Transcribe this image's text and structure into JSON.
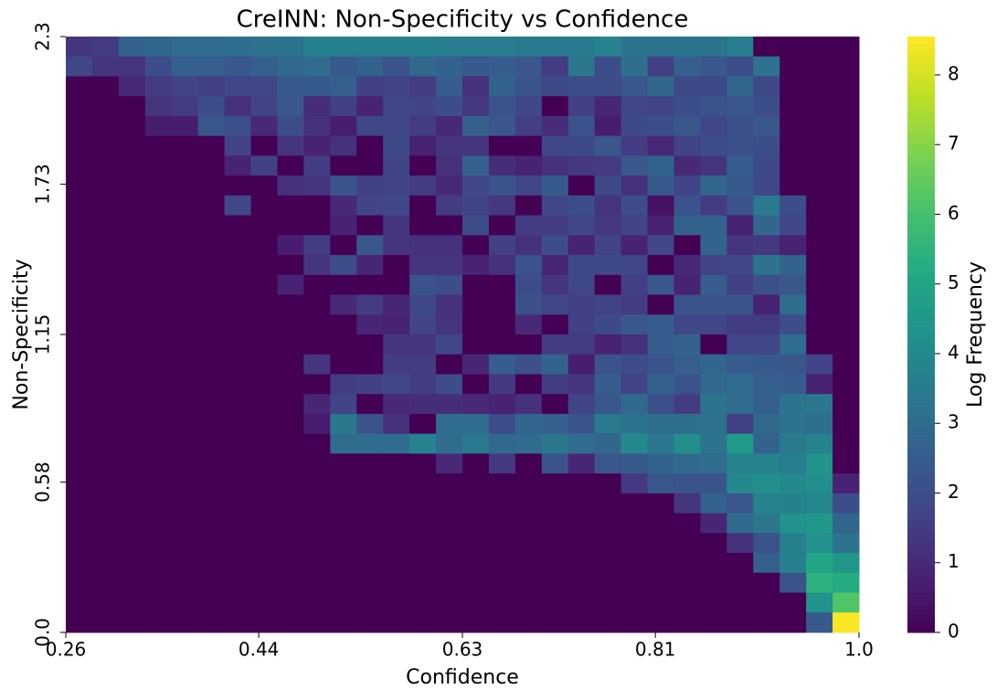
{
  "chart_data": {
    "type": "heatmap",
    "title": "CreINN: Non-Specificity vs Confidence",
    "x_label": "Confidence",
    "y_label": "Non-Specificity",
    "colorbar_label": "Log Frequency",
    "colormap": "viridis",
    "xlim": [
      0.26,
      1.0
    ],
    "ylim": [
      0,
      2.3
    ],
    "xticks": [
      0.26,
      0.44,
      0.63,
      0.81,
      {
        "value": 1.0,
        "label": "1.0"
      }
    ],
    "yticks": [
      {
        "value": 0,
        "label": "0.0"
      },
      0.58,
      1.15,
      1.73,
      2.3
    ],
    "clim": [
      0,
      8.55
    ],
    "colorbar_ticks": [
      0,
      1,
      2,
      3,
      4,
      5,
      6,
      7,
      8
    ],
    "z": [
      [
        1.3,
        1.5,
        2.7,
        2.8,
        3.0,
        3.0,
        3.1,
        3.2,
        3.3,
        3.7,
        3.7,
        3.7,
        3.7,
        3.7,
        3.6,
        3.6,
        3.6,
        3.5,
        3.5,
        3.5,
        3.8,
        3.3,
        3.3,
        3.3,
        3.3,
        3.6,
        0,
        0,
        0,
        0
      ],
      [
        1.8,
        1.3,
        1.3,
        2,
        2.6,
        2.6,
        2.3,
        2.6,
        2.9,
        3,
        2.4,
        2.7,
        2.2,
        2.9,
        2.7,
        2.4,
        2.5,
        2.3,
        1.5,
        3.4,
        2,
        3.1,
        1.6,
        2.6,
        2.3,
        2,
        3.2,
        0,
        0,
        0
      ],
      [
        0,
        0,
        1,
        1.5,
        1.7,
        1.6,
        1.8,
        1.8,
        2.4,
        2.4,
        2.6,
        1.6,
        1.7,
        1.5,
        2.5,
        1.2,
        2.7,
        2.2,
        1.9,
        2,
        2,
        2.3,
        2.8,
        1.9,
        1.9,
        2.8,
        1.9,
        0,
        0,
        0
      ],
      [
        0,
        0,
        0,
        1.3,
        1.5,
        2,
        1.2,
        1.7,
        2.3,
        1.1,
        1.6,
        0.8,
        1.8,
        1.7,
        2,
        1.4,
        2.2,
        1.8,
        0,
        1.6,
        0.9,
        1.8,
        1.7,
        2,
        2.2,
        2.3,
        2,
        0,
        0,
        0
      ],
      [
        0,
        0,
        0,
        0.7,
        0.7,
        2.3,
        2.1,
        1,
        2,
        1.2,
        0.7,
        1.8,
        1.8,
        1.5,
        1,
        2.6,
        2.3,
        1.6,
        1.1,
        2.2,
        0.7,
        1.9,
        2,
        2.3,
        1.8,
        2.1,
        2.3,
        0,
        0,
        0
      ],
      [
        0,
        0,
        0,
        0,
        0,
        0,
        1.7,
        0,
        1.3,
        0.8,
        1.2,
        0,
        1.9,
        0.8,
        1.3,
        1.3,
        0,
        0,
        1.8,
        1.9,
        2.3,
        1.5,
        1,
        1.7,
        2,
        2.1,
        2,
        0,
        0,
        0
      ],
      [
        0,
        0,
        0,
        0,
        0,
        0,
        0.8,
        1.6,
        0,
        1.5,
        0,
        0,
        1.7,
        0,
        1.2,
        2.6,
        1.1,
        0.8,
        1.2,
        1.4,
        1.5,
        2.3,
        2.7,
        1,
        1.3,
        2.5,
        1.9,
        0,
        0,
        0
      ],
      [
        0,
        0,
        0,
        0,
        0,
        0,
        0,
        0,
        1.2,
        1.3,
        2.2,
        1.6,
        1.7,
        1.5,
        1,
        1.8,
        2.2,
        1.8,
        2.4,
        0,
        1.9,
        1.2,
        2.4,
        1.7,
        2.8,
        2.4,
        1.8,
        0,
        0,
        0
      ],
      [
        0,
        0,
        0,
        0,
        0,
        0,
        1.8,
        0,
        0,
        0,
        1,
        1.7,
        1.8,
        0,
        1.5,
        1.7,
        1.4,
        0,
        1.8,
        2,
        1.3,
        2,
        0.4,
        2.2,
        1.5,
        2.2,
        3.5,
        2,
        0,
        0
      ],
      [
        0,
        0,
        0,
        0,
        0,
        0,
        0,
        0,
        0,
        0,
        0.8,
        0,
        1.3,
        0,
        0,
        2,
        0,
        1.5,
        1.5,
        1.8,
        1.4,
        1.7,
        0.8,
        2.7,
        2.7,
        0.8,
        2.8,
        1.8,
        0,
        0
      ],
      [
        0,
        0,
        0,
        0,
        0,
        0,
        0,
        0,
        0.7,
        1.5,
        0,
        2.3,
        1.3,
        1.2,
        1.2,
        0,
        1.6,
        1.2,
        2,
        0.8,
        1.7,
        0.8,
        1.8,
        0,
        2.7,
        1.3,
        1.4,
        0.8,
        0,
        0
      ],
      [
        0,
        0,
        0,
        0,
        0,
        0,
        0,
        0,
        0,
        1.3,
        2,
        0.9,
        0,
        1.3,
        1.3,
        0.8,
        1.2,
        2.2,
        0.9,
        1.9,
        1.9,
        1.8,
        0,
        1,
        1.7,
        1.8,
        3.3,
        2.7,
        0,
        0
      ],
      [
        0,
        0,
        0,
        0,
        0,
        0,
        0,
        0,
        0.8,
        0,
        0,
        0,
        0,
        2.2,
        2,
        0,
        0,
        2,
        1.3,
        1.8,
        0,
        1.6,
        2.3,
        0.8,
        2.5,
        1.6,
        2.1,
        2.3,
        0,
        0
      ],
      [
        0,
        0,
        0,
        0,
        0,
        0,
        0,
        0,
        0,
        0,
        1,
        1.5,
        0.9,
        1.8,
        1.2,
        0,
        0,
        2.1,
        1.8,
        1.6,
        1.7,
        1.5,
        0,
        2.2,
        2.2,
        2.2,
        0.8,
        3,
        0,
        0
      ],
      [
        0,
        0,
        0,
        0,
        0,
        0,
        0,
        0,
        0,
        0,
        0,
        0.9,
        0.8,
        1.7,
        1.3,
        0,
        0,
        1,
        0,
        1.6,
        1.9,
        2.3,
        2.5,
        1.8,
        1.8,
        1.5,
        1.5,
        2,
        0,
        0
      ],
      [
        0,
        0,
        0,
        0,
        0,
        0,
        0,
        0,
        0,
        0,
        0,
        0,
        1.3,
        1.3,
        1.8,
        0,
        0,
        0,
        1.5,
        1.5,
        0.8,
        1.2,
        2.5,
        2.7,
        0,
        1.8,
        1.8,
        3,
        0,
        0
      ],
      [
        0,
        0,
        0,
        0,
        0,
        0,
        0,
        0,
        0,
        1.3,
        0,
        0,
        1.5,
        1.5,
        0,
        0.9,
        2.5,
        2.1,
        2.7,
        0.7,
        2.2,
        2,
        2.2,
        2.6,
        2.8,
        2.5,
        2.4,
        2.3,
        1.7,
        0
      ],
      [
        0,
        0,
        0,
        0,
        0,
        0,
        0,
        0,
        0,
        0,
        1.5,
        1.6,
        1.8,
        1.5,
        2,
        0,
        1.4,
        0,
        1.5,
        1.3,
        2.5,
        1.7,
        2.7,
        2.2,
        2.9,
        3,
        2.6,
        2.5,
        0.8,
        0
      ],
      [
        0,
        0,
        0,
        0,
        0,
        0,
        0,
        0,
        0,
        0.9,
        1.7,
        0,
        1,
        1.1,
        1.1,
        1,
        0.8,
        1.2,
        0,
        1.7,
        2.3,
        2.9,
        2.1,
        1.5,
        3.3,
        3,
        2.6,
        3.3,
        3.4,
        0
      ],
      [
        0,
        0,
        0,
        0,
        0,
        0,
        0,
        0,
        0,
        0.7,
        3.4,
        2.2,
        1.2,
        0,
        3,
        3,
        2,
        2.8,
        2.6,
        2.2,
        3.5,
        3.3,
        3.1,
        3.1,
        3.2,
        1.6,
        2.9,
        3.3,
        3.1,
        0
      ],
      [
        0,
        0,
        0,
        0,
        0,
        0,
        0,
        0,
        0,
        0,
        3,
        3,
        3,
        3.8,
        3,
        3.5,
        2.9,
        3,
        3.4,
        3,
        2.8,
        4,
        3.4,
        4.2,
        3.3,
        4.6,
        2.7,
        3.5,
        3.8,
        0
      ],
      [
        0,
        0,
        0,
        0,
        0,
        0,
        0,
        0,
        0,
        0,
        0,
        0,
        0,
        0,
        1,
        0,
        1.4,
        0,
        2.2,
        0.9,
        2.3,
        2.4,
        2.7,
        2.9,
        3,
        3.8,
        3.8,
        3.6,
        4.4,
        0
      ],
      [
        0,
        0,
        0,
        0,
        0,
        0,
        0,
        0,
        0,
        0,
        0,
        0,
        0,
        0,
        0,
        0,
        0,
        0,
        0,
        0,
        0,
        1.4,
        2.3,
        2.2,
        2.2,
        4,
        4.2,
        4,
        4.2,
        0.8
      ],
      [
        0,
        0,
        0,
        0,
        0,
        0,
        0,
        0,
        0,
        0,
        0,
        0,
        0,
        0,
        0,
        0,
        0,
        0,
        0,
        0,
        0,
        0,
        0,
        1.3,
        2.7,
        2.3,
        3.8,
        3.7,
        3.9,
        2
      ],
      [
        0,
        0,
        0,
        0,
        0,
        0,
        0,
        0,
        0,
        0,
        0,
        0,
        0,
        0,
        0,
        0,
        0,
        0,
        0,
        0,
        0,
        0,
        0,
        0,
        0.9,
        2.9,
        3.4,
        4.3,
        4.5,
        2.8
      ],
      [
        0,
        0,
        0,
        0,
        0,
        0,
        0,
        0,
        0,
        0,
        0,
        0,
        0,
        0,
        0,
        0,
        0,
        0,
        0,
        0,
        0,
        0,
        0,
        0,
        0,
        1.2,
        2.2,
        3.7,
        4.3,
        3.2
      ],
      [
        0,
        0,
        0,
        0,
        0,
        0,
        0,
        0,
        0,
        0,
        0,
        0,
        0,
        0,
        0,
        0,
        0,
        0,
        0,
        0,
        0,
        0,
        0,
        0,
        0,
        0,
        2.6,
        3.7,
        5,
        4.5
      ],
      [
        0,
        0,
        0,
        0,
        0,
        0,
        0,
        0,
        0,
        0,
        0,
        0,
        0,
        0,
        0,
        0,
        0,
        0,
        0,
        0,
        0,
        0,
        0,
        0,
        0,
        0,
        0,
        2.2,
        5.4,
        5.2
      ],
      [
        0,
        0,
        0,
        0,
        0,
        0,
        0,
        0,
        0,
        0,
        0,
        0,
        0,
        0,
        0,
        0,
        0,
        0,
        0,
        0,
        0,
        0,
        0,
        0,
        0,
        0,
        0,
        0,
        4.3,
        6.2
      ],
      [
        0,
        0,
        0,
        0,
        0,
        0,
        0,
        0,
        0,
        0,
        0,
        0,
        0,
        0,
        0,
        0,
        0,
        0,
        0,
        0,
        0,
        0,
        0,
        0,
        0,
        0,
        0,
        0,
        2.4,
        8.5
      ]
    ]
  }
}
